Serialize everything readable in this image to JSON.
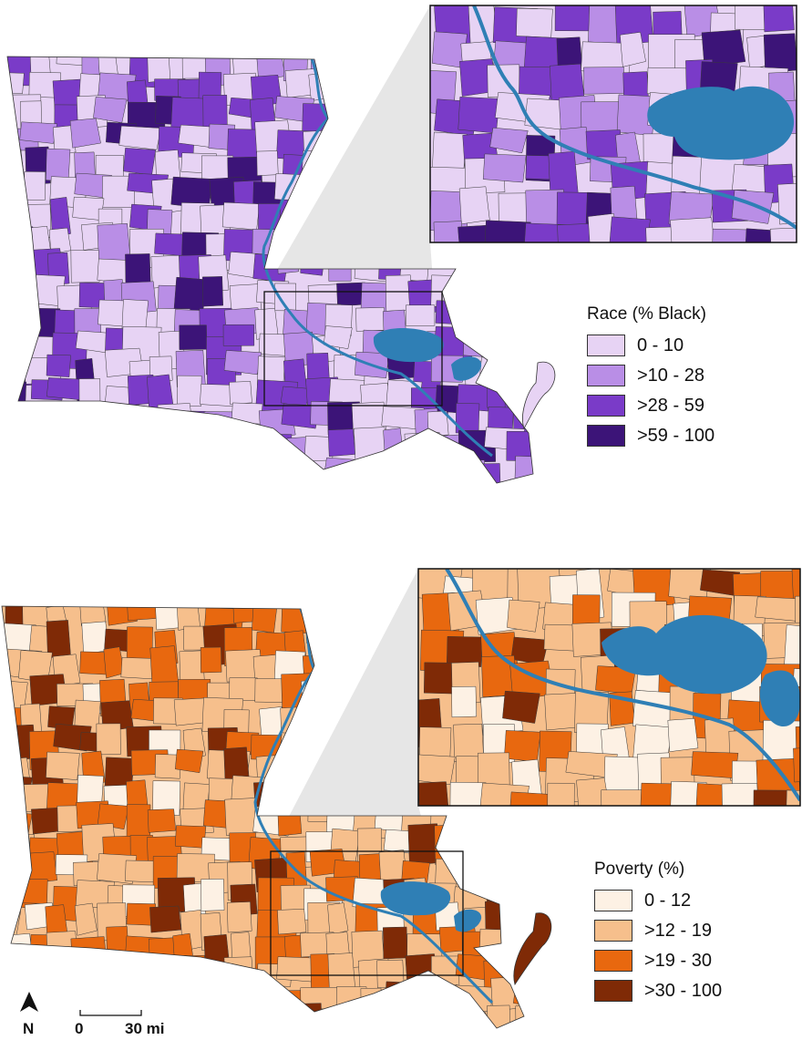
{
  "maps": [
    {
      "id": "race",
      "legend": {
        "title": "Race (% Black)",
        "classes": [
          {
            "label": "0 - 10",
            "color": "#e7d3f4"
          },
          {
            "label": ">10 - 28",
            "color": "#b98ee6"
          },
          {
            "label": ">28 - 59",
            "color": "#7a3bc8"
          },
          {
            "label": ">59 - 100",
            "color": "#3c1478"
          }
        ]
      },
      "water_color": "#2f7fb5"
    },
    {
      "id": "poverty",
      "legend": {
        "title": "Poverty (%)",
        "classes": [
          {
            "label": "0 - 12",
            "color": "#fdf1e4"
          },
          {
            "label": ">12 - 19",
            "color": "#f6bf8c"
          },
          {
            "label": ">19 - 30",
            "color": "#e8680f"
          },
          {
            "label": ">30 - 100",
            "color": "#7f2a06"
          }
        ]
      },
      "water_color": "#2f7fb5"
    }
  ],
  "north_arrow": {
    "label": "N"
  },
  "scale_bar": {
    "start_label": "0",
    "end_label": "30 mi"
  }
}
